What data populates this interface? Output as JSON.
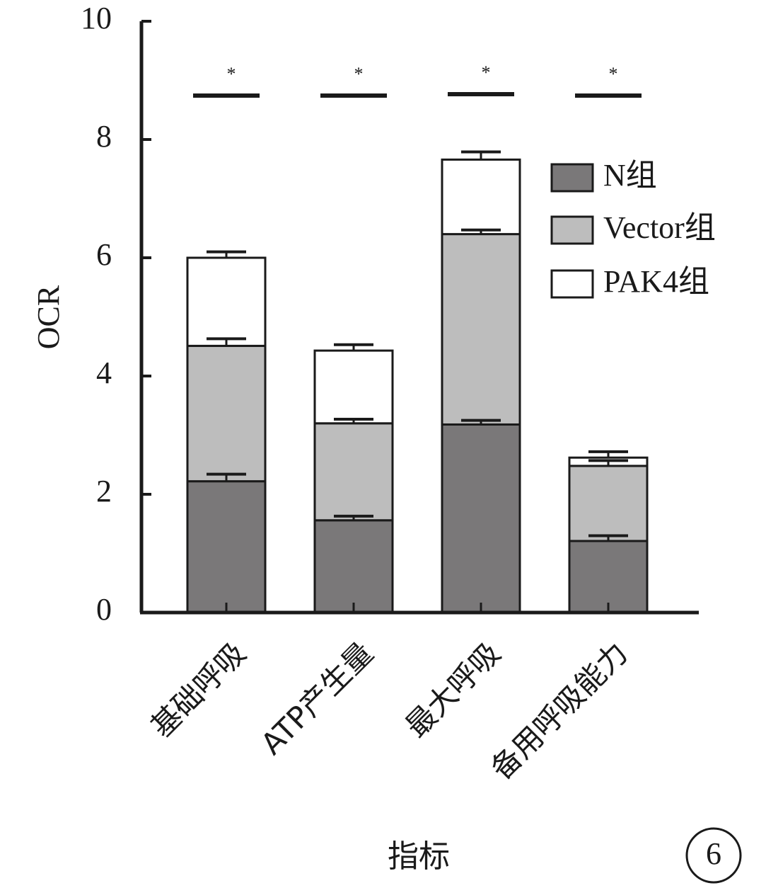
{
  "figure_number": "6",
  "chart_data": {
    "type": "bar",
    "stacked": true,
    "title": "",
    "xlabel": "指标",
    "ylabel": "OCR",
    "ylim": [
      0,
      10
    ],
    "yticks": [
      "0",
      "2",
      "4",
      "6",
      "8",
      "10"
    ],
    "categories": [
      "基础呼吸",
      "ATP产生量",
      "最大呼吸",
      "备用呼吸能力"
    ],
    "series": [
      {
        "name": "N组",
        "color": "#7a7879",
        "values": [
          2.22,
          1.56,
          3.18,
          1.21
        ]
      },
      {
        "name": "Vector组",
        "color": "#bdbdbd",
        "values": [
          2.29,
          1.64,
          3.22,
          1.27
        ]
      },
      {
        "name": "PAK4组",
        "color": "#ffffff",
        "values": [
          1.49,
          1.23,
          1.26,
          0.14
        ]
      }
    ],
    "error_bars": [
      [
        0.12,
        0.07,
        0.07,
        0.09
      ],
      [
        0.12,
        0.07,
        0.07,
        0.09
      ],
      [
        0.1,
        0.1,
        0.13,
        0.1
      ]
    ],
    "significance": [
      "*",
      "*",
      "*",
      "*"
    ],
    "legend_position": "top-right"
  }
}
